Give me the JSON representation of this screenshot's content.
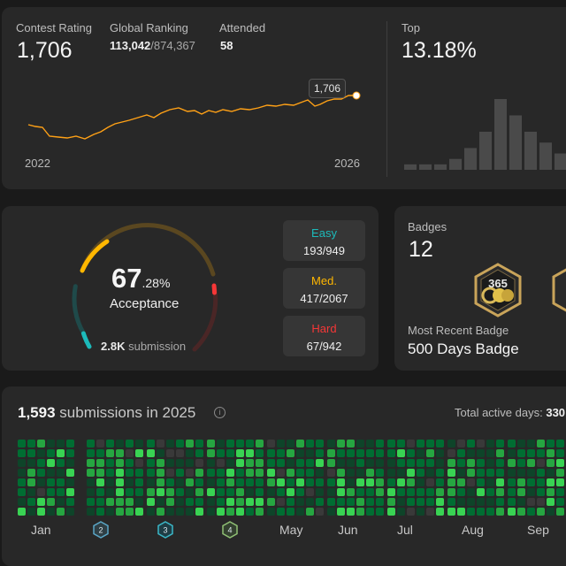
{
  "contest": {
    "rating_label": "Contest Rating",
    "rating_value": "1,706",
    "ranking_label": "Global Ranking",
    "ranking_value": "113,042",
    "ranking_total": "/874,367",
    "attended_label": "Attended",
    "attended_value": "58",
    "tooltip": "1,706",
    "year_start": "2022",
    "year_end": "2026",
    "top_label": "Top",
    "top_value": "13.18%",
    "line_color": "#ffa116",
    "histogram": [
      1,
      1,
      1,
      2,
      4,
      7,
      13,
      10,
      7,
      5,
      3,
      2
    ]
  },
  "solved": {
    "percent_int": "67",
    "percent_dec": ".28%",
    "acceptance_label": "Acceptance",
    "submission_count": "2.8K",
    "submission_label": "submission",
    "easy_label": "Easy",
    "easy_value": "193/949",
    "easy_color": "#1cbaba",
    "medium_label": "Med.",
    "medium_value": "417/2067",
    "medium_color": "#ffb700",
    "hard_label": "Hard",
    "hard_value": "67/942",
    "hard_color": "#f63737"
  },
  "badges": {
    "label": "Badges",
    "count": "12",
    "recent_label": "Most Recent Badge",
    "recent_name": "500 Days Badge",
    "badge_icon": "days-badge-icon"
  },
  "calendar": {
    "count": "1,593",
    "label": "submissions in 2025",
    "active_days_label": "Total active days:",
    "active_days_value": "330",
    "months": [
      "Jan",
      "May",
      "Jun",
      "Jul",
      "Aug",
      "Sep"
    ],
    "month_badges": [
      "2",
      "3",
      "4"
    ],
    "colors": [
      "#393939",
      "#0e4429",
      "#006d32",
      "#26a641",
      "#39d353"
    ]
  }
}
